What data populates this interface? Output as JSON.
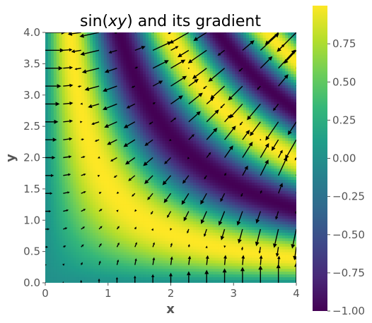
{
  "chart_data": {
    "type": "heatmap",
    "function": "sin(x*y)",
    "overlay": "quiver (gradient vectors)",
    "title_parts": [
      "sin(",
      "xy",
      ") and its gradient"
    ],
    "xlabel": "x",
    "ylabel": "y",
    "xlim": [
      0,
      4
    ],
    "ylim": [
      0,
      4
    ],
    "x_ticks": [
      "0",
      "1",
      "2",
      "3",
      "4"
    ],
    "y_ticks": [
      "0.0",
      "0.5",
      "1.0",
      "1.5",
      "2.0",
      "2.5",
      "3.0",
      "3.5",
      "4.0"
    ],
    "colorbar": {
      "colormap": "viridis",
      "range": [
        -1.0,
        1.0
      ],
      "ticks": [
        "−1.00",
        "−0.75",
        "−0.50",
        "−0.25",
        "0.00",
        "0.25",
        "0.50",
        "0.75"
      ],
      "tick_values": [
        -1.0,
        -0.75,
        -0.5,
        -0.25,
        0.0,
        0.25,
        0.5,
        0.75
      ]
    },
    "quiver_grid": {
      "nx": 15,
      "ny": 15,
      "range": [
        0,
        4
      ]
    },
    "grid": false
  },
  "colors": {
    "viridis": [
      "#440154",
      "#482878",
      "#3e4989",
      "#31688e",
      "#26828e",
      "#1f9e89",
      "#35b779",
      "#6ece58",
      "#b5de2b",
      "#fde725"
    ],
    "text": "#555555",
    "arrow": "#000000"
  }
}
